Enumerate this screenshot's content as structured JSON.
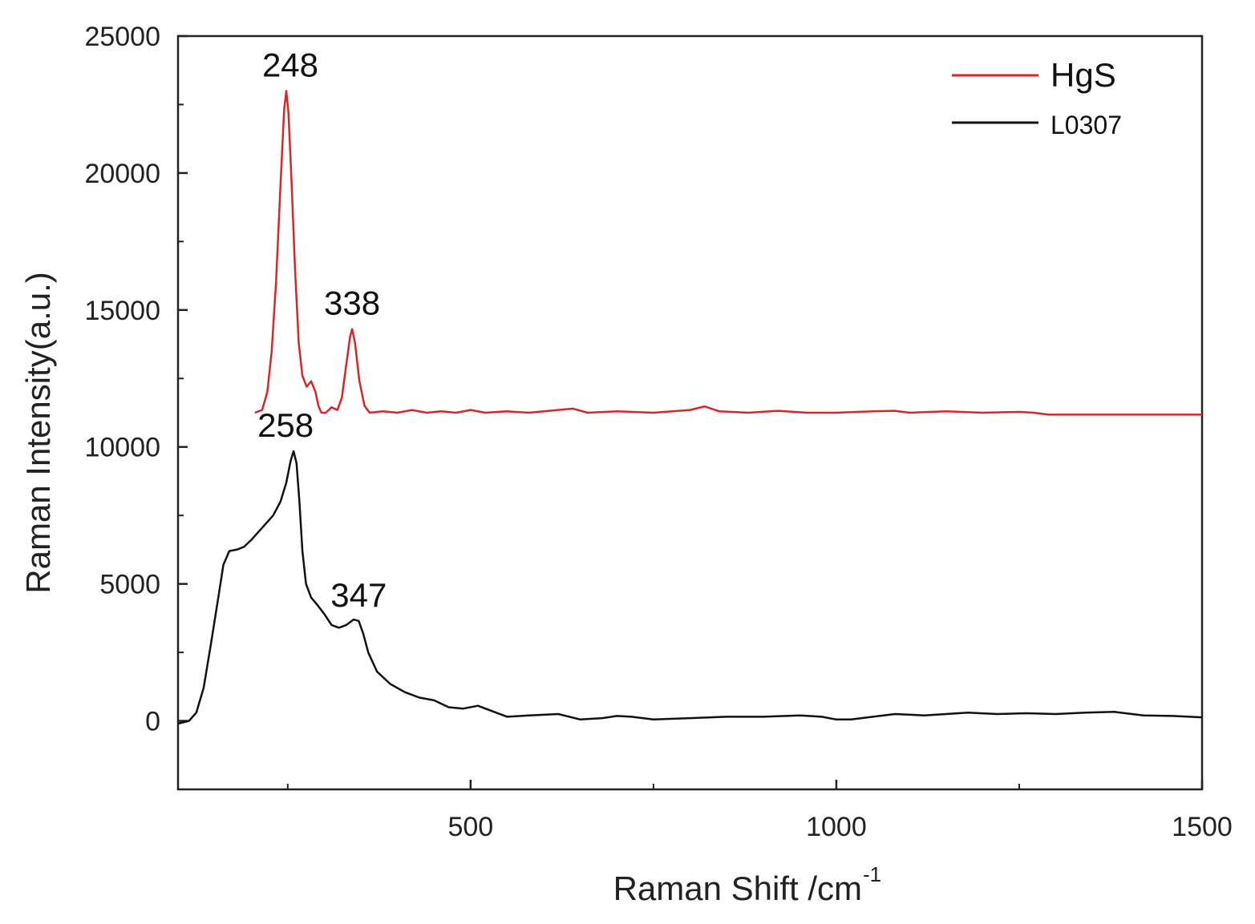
{
  "chart_data": {
    "type": "line",
    "title": "",
    "xlabel": "Raman Shift /cm",
    "xlabel_superscript": "-1",
    "ylabel": "Raman Intensity(a.u.)",
    "xlim": [
      100,
      1500
    ],
    "ylim": [
      -2500,
      25000
    ],
    "x_ticks": [
      500,
      1000,
      1500
    ],
    "x_minor_ticks": [
      250,
      750,
      1250
    ],
    "y_ticks": [
      0,
      5000,
      10000,
      15000,
      20000,
      25000
    ],
    "y_minor_ticks": [
      2500,
      7500,
      12500,
      17500,
      22500
    ],
    "grid": false,
    "legend_position": "top-right",
    "series": [
      {
        "name": "HgS",
        "color": "#d62728",
        "points": [
          [
            205,
            11250
          ],
          [
            215,
            11350
          ],
          [
            222,
            12000
          ],
          [
            228,
            13500
          ],
          [
            234,
            16000
          ],
          [
            240,
            19500
          ],
          [
            245,
            22300
          ],
          [
            248,
            23000
          ],
          [
            251,
            22200
          ],
          [
            255,
            19800
          ],
          [
            260,
            16500
          ],
          [
            265,
            13800
          ],
          [
            270,
            12600
          ],
          [
            276,
            12200
          ],
          [
            282,
            12400
          ],
          [
            288,
            12000
          ],
          [
            292,
            11500
          ],
          [
            296,
            11250
          ],
          [
            302,
            11250
          ],
          [
            310,
            11450
          ],
          [
            318,
            11350
          ],
          [
            324,
            11800
          ],
          [
            330,
            13000
          ],
          [
            335,
            14000
          ],
          [
            338,
            14300
          ],
          [
            342,
            13800
          ],
          [
            348,
            12400
          ],
          [
            355,
            11500
          ],
          [
            362,
            11250
          ],
          [
            380,
            11300
          ],
          [
            400,
            11250
          ],
          [
            420,
            11350
          ],
          [
            440,
            11250
          ],
          [
            460,
            11300
          ],
          [
            480,
            11250
          ],
          [
            500,
            11350
          ],
          [
            520,
            11250
          ],
          [
            550,
            11300
          ],
          [
            580,
            11250
          ],
          [
            600,
            11300
          ],
          [
            640,
            11400
          ],
          [
            660,
            11250
          ],
          [
            700,
            11300
          ],
          [
            750,
            11250
          ],
          [
            800,
            11350
          ],
          [
            820,
            11480
          ],
          [
            840,
            11300
          ],
          [
            880,
            11250
          ],
          [
            920,
            11320
          ],
          [
            960,
            11250
          ],
          [
            1000,
            11250
          ],
          [
            1050,
            11300
          ],
          [
            1080,
            11320
          ],
          [
            1100,
            11250
          ],
          [
            1150,
            11300
          ],
          [
            1200,
            11250
          ],
          [
            1250,
            11280
          ],
          [
            1270,
            11250
          ],
          [
            1290,
            11180
          ],
          [
            1500,
            11180
          ]
        ]
      },
      {
        "name": "L0307",
        "color": "#111111",
        "points": [
          [
            100,
            -100
          ],
          [
            115,
            0
          ],
          [
            125,
            300
          ],
          [
            135,
            1200
          ],
          [
            145,
            2800
          ],
          [
            155,
            4500
          ],
          [
            162,
            5700
          ],
          [
            170,
            6200
          ],
          [
            180,
            6250
          ],
          [
            190,
            6350
          ],
          [
            200,
            6600
          ],
          [
            210,
            6900
          ],
          [
            220,
            7200
          ],
          [
            230,
            7500
          ],
          [
            240,
            8000
          ],
          [
            248,
            8700
          ],
          [
            254,
            9500
          ],
          [
            258,
            9850
          ],
          [
            262,
            9400
          ],
          [
            266,
            8000
          ],
          [
            270,
            6200
          ],
          [
            275,
            5000
          ],
          [
            282,
            4500
          ],
          [
            290,
            4250
          ],
          [
            300,
            3900
          ],
          [
            310,
            3500
          ],
          [
            320,
            3400
          ],
          [
            330,
            3500
          ],
          [
            340,
            3700
          ],
          [
            347,
            3650
          ],
          [
            353,
            3200
          ],
          [
            360,
            2500
          ],
          [
            372,
            1800
          ],
          [
            390,
            1350
          ],
          [
            410,
            1050
          ],
          [
            430,
            850
          ],
          [
            450,
            750
          ],
          [
            470,
            500
          ],
          [
            490,
            450
          ],
          [
            510,
            550
          ],
          [
            530,
            350
          ],
          [
            550,
            150
          ],
          [
            580,
            200
          ],
          [
            620,
            250
          ],
          [
            650,
            50
          ],
          [
            680,
            100
          ],
          [
            700,
            180
          ],
          [
            720,
            150
          ],
          [
            750,
            50
          ],
          [
            800,
            100
          ],
          [
            850,
            150
          ],
          [
            900,
            150
          ],
          [
            950,
            200
          ],
          [
            980,
            150
          ],
          [
            1000,
            50
          ],
          [
            1020,
            50
          ],
          [
            1050,
            150
          ],
          [
            1080,
            250
          ],
          [
            1120,
            200
          ],
          [
            1150,
            250
          ],
          [
            1180,
            300
          ],
          [
            1220,
            250
          ],
          [
            1260,
            280
          ],
          [
            1300,
            250
          ],
          [
            1340,
            300
          ],
          [
            1380,
            330
          ],
          [
            1420,
            200
          ],
          [
            1460,
            180
          ],
          [
            1500,
            130
          ]
        ]
      }
    ],
    "annotations": [
      {
        "text": "248",
        "x": 248,
        "y": 23000
      },
      {
        "text": "338",
        "x": 338,
        "y": 14300
      },
      {
        "text": "258",
        "x": 258,
        "y": 9850
      },
      {
        "text": "347",
        "x": 347,
        "y": 3650
      }
    ]
  }
}
